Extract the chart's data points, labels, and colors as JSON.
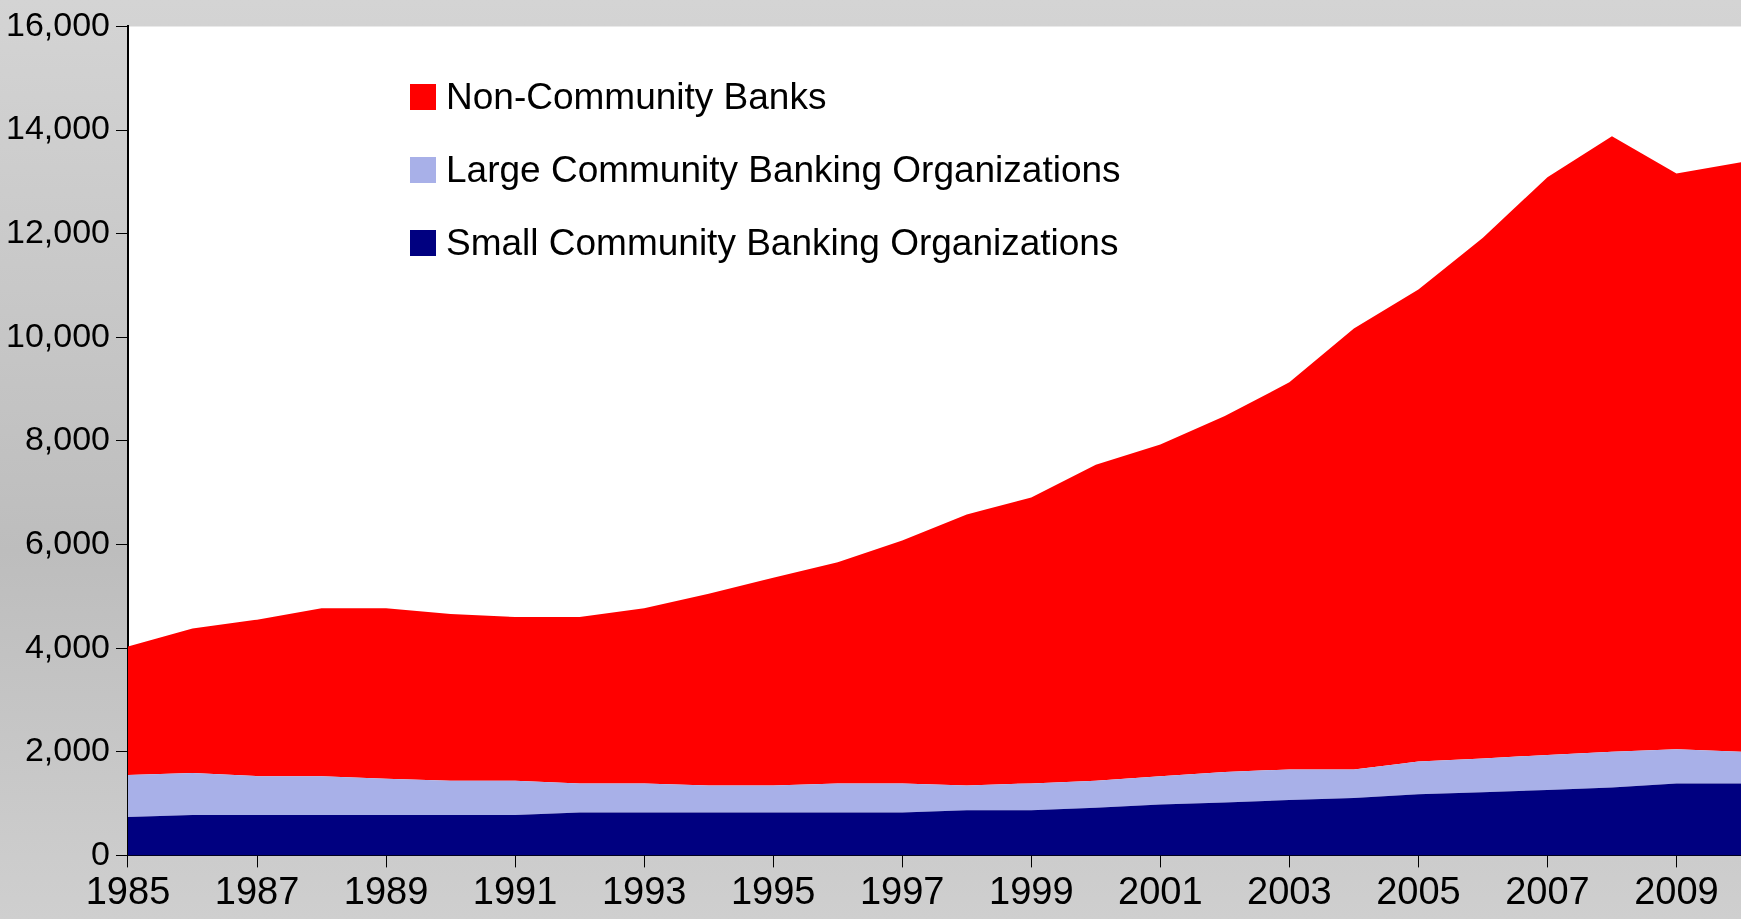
{
  "chart_data": {
    "type": "area",
    "stacked": true,
    "x": [
      1985,
      1986,
      1987,
      1988,
      1989,
      1990,
      1991,
      1992,
      1993,
      1994,
      1995,
      1996,
      1997,
      1998,
      1999,
      2000,
      2001,
      2002,
      2003,
      2004,
      2005,
      2006,
      2007,
      2008,
      2009,
      2010
    ],
    "series": [
      {
        "name": "Small Community Banking Organizations",
        "color": "#000080",
        "values": [
          740,
          780,
          780,
          780,
          780,
          780,
          780,
          830,
          830,
          830,
          830,
          830,
          830,
          870,
          870,
          920,
          980,
          1020,
          1070,
          1110,
          1180,
          1220,
          1260,
          1310,
          1390,
          1390
        ]
      },
      {
        "name": "Large Community Banking Organizations",
        "color": "#a8b0e8",
        "values": [
          810,
          810,
          750,
          750,
          700,
          660,
          660,
          560,
          560,
          520,
          520,
          560,
          560,
          480,
          520,
          520,
          550,
          590,
          590,
          550,
          630,
          650,
          680,
          690,
          660,
          610
        ]
      },
      {
        "name": "Non-Community Banks",
        "color": "#ff0000",
        "values": [
          2480,
          2790,
          3020,
          3240,
          3290,
          3220,
          3160,
          3210,
          3380,
          3700,
          4010,
          4270,
          4690,
          5230,
          5520,
          6100,
          6400,
          6870,
          7470,
          8510,
          9110,
          10050,
          11150,
          11880,
          11110,
          11380
        ]
      }
    ],
    "xlim": [
      1985,
      2010
    ],
    "xticks": [
      1985,
      1987,
      1989,
      1991,
      1993,
      1995,
      1997,
      1999,
      2001,
      2003,
      2005,
      2007,
      2009
    ],
    "ylim": [
      0,
      16000
    ],
    "yticks": [
      0,
      {
        "value": 2000,
        "label": "2,000"
      },
      {
        "value": 4000,
        "label": "4,000"
      },
      {
        "value": 6000,
        "label": "6,000"
      },
      {
        "value": 8000,
        "label": "8,000"
      },
      {
        "value": 10000,
        "label": "10,000"
      },
      {
        "value": 12000,
        "label": "12,000"
      },
      {
        "value": 14000,
        "label": "14,000"
      },
      {
        "value": 16000,
        "label": "16,000"
      }
    ],
    "grid": false,
    "legend": "top left"
  }
}
